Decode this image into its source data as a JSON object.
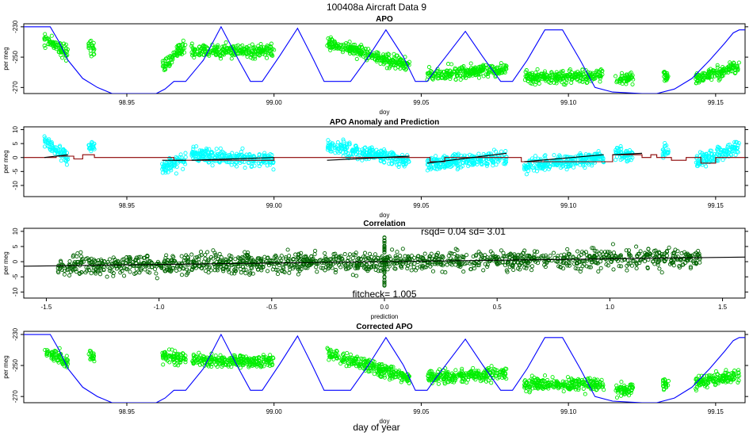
{
  "figure": {
    "title": "100408a   Aircraft Data 9",
    "xlabel": "day of year"
  },
  "colors": {
    "green": "#00ee00",
    "cyan": "#00ffff",
    "darkgreen": "#006400",
    "blue": "#0000ff",
    "darkred": "#8b0000",
    "black": "#000000"
  },
  "chart_data": [
    {
      "type": "scatter",
      "title": "APO",
      "xlabel": "doy",
      "ylabel": "per meg",
      "xlim": [
        98.915,
        99.16
      ],
      "ylim": [
        -274,
        -228
      ],
      "x_ticks": [
        "98.95",
        "99.00",
        "99.05",
        "99.10",
        "99.15"
      ],
      "y_ticks": [
        "-230",
        "-250",
        "-270"
      ],
      "series": [
        {
          "style": "points",
          "segments": [
            {
              "x": [
                98.922,
                98.93
              ],
              "y": [
                -238,
                -248
              ]
            },
            {
              "x": [
                98.937,
                98.939
              ],
              "y": [
                -242,
                -246
              ]
            },
            {
              "x": [
                98.962,
                98.97
              ],
              "y": [
                -256,
                -242
              ]
            },
            {
              "x": [
                98.972,
                99.0
              ],
              "y": [
                -246,
                -246
              ]
            },
            {
              "x": [
                99.018,
                99.046
              ],
              "y": [
                -240,
                -256
              ]
            },
            {
              "x": [
                99.052,
                99.079
              ],
              "y": [
                -262,
                -258
              ]
            },
            {
              "x": [
                99.085,
                99.112
              ],
              "y": [
                -264,
                -262
              ]
            },
            {
              "x": [
                99.116,
                99.122
              ],
              "y": [
                -264,
                -264
              ]
            },
            {
              "x": [
                99.132,
                99.134
              ],
              "y": [
                -262,
                -262
              ]
            },
            {
              "x": [
                99.143,
                99.158
              ],
              "y": [
                -264,
                -256
              ]
            }
          ]
        },
        {
          "style": "line",
          "x": [
            98.915,
            98.924,
            98.927,
            98.93,
            98.935,
            98.94,
            98.945,
            98.95,
            98.955,
            98.96,
            98.963,
            98.966,
            98.97,
            98.976,
            98.982,
            98.988,
            98.992,
            98.996,
            99.002,
            99.008,
            99.013,
            99.017,
            99.022,
            99.026,
            99.032,
            99.038,
            99.044,
            99.048,
            99.052,
            99.055,
            99.059,
            99.065,
            99.071,
            99.077,
            99.081,
            99.086,
            99.092,
            99.098,
            99.104,
            99.109,
            99.115,
            99.125,
            99.13,
            99.136,
            99.142,
            99.148,
            99.153,
            99.156,
            99.158,
            99.16
          ],
          "y": [
            -230,
            -230,
            -240,
            -252,
            -264,
            -270,
            -274,
            -274,
            -274,
            -274,
            -271,
            -266,
            -266,
            -252,
            -230,
            -252,
            -266,
            -266,
            -249,
            -231,
            -250,
            -266,
            -266,
            -266,
            -250,
            -232,
            -250,
            -266,
            -266,
            -258,
            -248,
            -233,
            -250,
            -266,
            -266,
            -252,
            -232,
            -232,
            -252,
            -270,
            -273,
            -274,
            -274,
            -271,
            -264,
            -252,
            -241,
            -234,
            -232,
            -232
          ]
        }
      ]
    },
    {
      "type": "scatter",
      "title": "APO Anomaly and Prediction",
      "xlabel": "doy",
      "ylabel": "per meg",
      "xlim": [
        98.915,
        99.16
      ],
      "ylim": [
        -14,
        11
      ],
      "x_ticks": [
        "98.95",
        "99.00",
        "99.05",
        "99.10",
        "99.15"
      ],
      "y_ticks": [
        "10",
        "5",
        "0",
        "-5",
        "-10"
      ],
      "series": [
        {
          "style": "points",
          "segments": [
            {
              "x": [
                98.922,
                98.93
              ],
              "y": [
                6,
                0
              ]
            },
            {
              "x": [
                98.937,
                98.939
              ],
              "y": [
                4,
                4
              ]
            },
            {
              "x": [
                98.962,
                98.97
              ],
              "y": [
                -4,
                -1
              ]
            },
            {
              "x": [
                98.972,
                99.0
              ],
              "y": [
                1,
                -1
              ]
            },
            {
              "x": [
                99.018,
                99.046
              ],
              "y": [
                4,
                -1
              ]
            },
            {
              "x": [
                99.052,
                99.079
              ],
              "y": [
                -2,
                0
              ]
            },
            {
              "x": [
                99.085,
                99.112
              ],
              "y": [
                -3,
                0
              ]
            },
            {
              "x": [
                99.116,
                99.122
              ],
              "y": [
                1,
                1
              ]
            },
            {
              "x": [
                99.132,
                99.134
              ],
              "y": [
                2,
                2
              ]
            },
            {
              "x": [
                99.143,
                99.158
              ],
              "y": [
                -2,
                4
              ]
            }
          ]
        },
        {
          "style": "step",
          "x": [
            98.915,
            98.924,
            98.926,
            98.93,
            98.932,
            98.935,
            98.939,
            98.96,
            98.966,
            98.969,
            98.972,
            99.0,
            99.01,
            99.018,
            99.03,
            99.05,
            99.053,
            99.058,
            99.08,
            99.084,
            99.087,
            99.115,
            99.122,
            99.125,
            99.128,
            99.13,
            99.135,
            99.14,
            99.145,
            99.15,
            99.16
          ],
          "y": [
            0,
            0,
            0.5,
            0.5,
            -0.5,
            1,
            0,
            0,
            -1,
            -1,
            -1,
            0,
            0,
            0,
            0,
            0,
            -1.5,
            0,
            0,
            -1.5,
            -1.5,
            1,
            1,
            0,
            1,
            0,
            -1,
            0,
            -2,
            0,
            0
          ]
        },
        {
          "style": "line",
          "segments": [
            {
              "x": [
                98.922,
                98.93
              ],
              "y": [
                0,
                1
              ]
            },
            {
              "x": [
                98.962,
                98.97
              ],
              "y": [
                -1,
                -1
              ]
            },
            {
              "x": [
                98.972,
                99.0
              ],
              "y": [
                -1,
                0
              ]
            },
            {
              "x": [
                99.018,
                99.046
              ],
              "y": [
                -1,
                0.5
              ]
            },
            {
              "x": [
                99.052,
                99.079
              ],
              "y": [
                -2,
                1.5
              ]
            },
            {
              "x": [
                99.085,
                99.112
              ],
              "y": [
                -1.5,
                1
              ]
            },
            {
              "x": [
                99.115,
                99.125
              ],
              "y": [
                1,
                1.5
              ]
            }
          ]
        }
      ]
    },
    {
      "type": "scatter",
      "title": "Correlation",
      "xlabel": "prediction",
      "ylabel": "per meg",
      "xlim": [
        -1.6,
        1.6
      ],
      "ylim": [
        -12,
        11
      ],
      "x_ticks": [
        "-1.5",
        "-1.0",
        "-0.5",
        "0.0",
        "0.5",
        "1.0",
        "1.5"
      ],
      "y_ticks": [
        "10",
        "5",
        "0",
        "-5",
        "-10"
      ],
      "annotations": [
        "rsqd= 0.04 sd= 3.01",
        "fitcheck= 1.005"
      ],
      "series": [
        {
          "style": "points",
          "x_range": [
            -1.45,
            1.4
          ],
          "y_spread": 6
        },
        {
          "style": "line",
          "x": [
            -1.6,
            1.6
          ],
          "y": [
            -1.5,
            1.5
          ]
        }
      ]
    },
    {
      "type": "scatter",
      "title": "Corrected APO",
      "xlabel": "doy",
      "ylabel": "per meg",
      "xlim": [
        98.915,
        99.16
      ],
      "ylim": [
        -274,
        -228
      ],
      "x_ticks": [
        "98.95",
        "99.00",
        "99.05",
        "99.10",
        "99.15"
      ],
      "y_ticks": [
        "-230",
        "-250",
        "-270"
      ],
      "series": [
        {
          "style": "points",
          "segments": [
            {
              "x": [
                98.922,
                98.93
              ],
              "y": [
                -240,
                -248
              ]
            },
            {
              "x": [
                98.937,
                98.939
              ],
              "y": [
                -242,
                -246
              ]
            },
            {
              "x": [
                98.962,
                98.97
              ],
              "y": [
                -244,
                -246
              ]
            },
            {
              "x": [
                98.972,
                99.0
              ],
              "y": [
                -247,
                -247
              ]
            },
            {
              "x": [
                99.018,
                99.046
              ],
              "y": [
                -242,
                -258
              ]
            },
            {
              "x": [
                99.052,
                99.079
              ],
              "y": [
                -258,
                -255
              ]
            },
            {
              "x": [
                99.085,
                99.112
              ],
              "y": [
                -262,
                -262
              ]
            },
            {
              "x": [
                99.116,
                99.122
              ],
              "y": [
                -265,
                -265
              ]
            },
            {
              "x": [
                99.132,
                99.134
              ],
              "y": [
                -262,
                -262
              ]
            },
            {
              "x": [
                99.143,
                99.158
              ],
              "y": [
                -262,
                -256
              ]
            }
          ]
        },
        {
          "style": "line",
          "x": [
            98.915,
            98.924,
            98.927,
            98.93,
            98.935,
            98.94,
            98.945,
            98.95,
            98.955,
            98.96,
            98.963,
            98.966,
            98.97,
            98.976,
            98.982,
            98.988,
            98.992,
            98.996,
            99.002,
            99.008,
            99.013,
            99.017,
            99.022,
            99.026,
            99.032,
            99.038,
            99.044,
            99.048,
            99.052,
            99.055,
            99.059,
            99.065,
            99.071,
            99.077,
            99.081,
            99.086,
            99.092,
            99.098,
            99.104,
            99.109,
            99.115,
            99.125,
            99.13,
            99.136,
            99.142,
            99.148,
            99.153,
            99.156,
            99.158,
            99.16
          ],
          "y": [
            -230,
            -230,
            -240,
            -252,
            -264,
            -270,
            -274,
            -274,
            -274,
            -274,
            -271,
            -266,
            -266,
            -252,
            -230,
            -252,
            -266,
            -266,
            -249,
            -231,
            -250,
            -266,
            -266,
            -266,
            -250,
            -232,
            -250,
            -266,
            -266,
            -258,
            -248,
            -233,
            -250,
            -266,
            -266,
            -252,
            -232,
            -232,
            -252,
            -270,
            -273,
            -274,
            -274,
            -271,
            -264,
            -252,
            -241,
            -234,
            -232,
            -232
          ]
        }
      ]
    }
  ]
}
